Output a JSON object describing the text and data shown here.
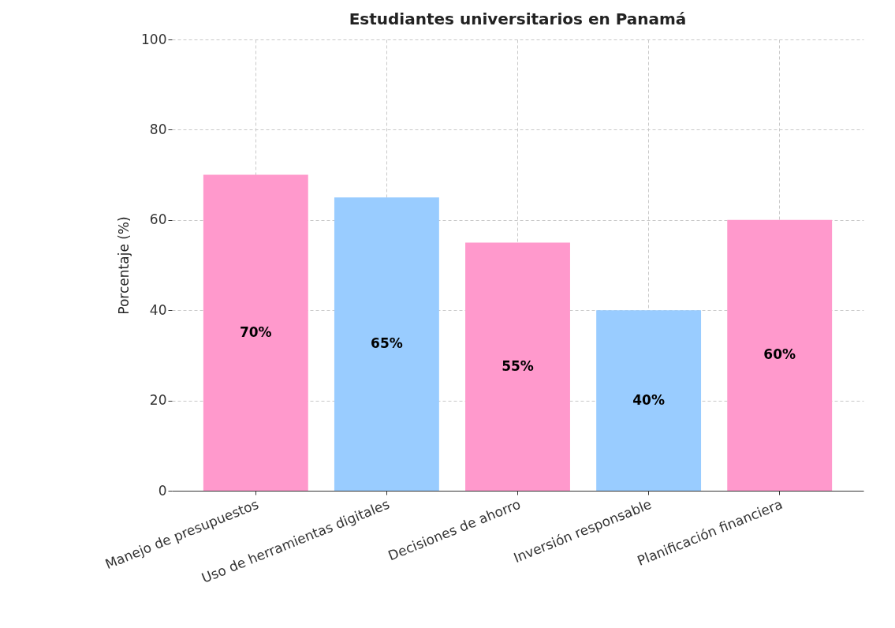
{
  "chart_data": {
    "type": "bar",
    "title": "Estudiantes universitarios en Panamá",
    "ylabel": "Porcentaje (%)",
    "categories": [
      "Manejo de presupuestos",
      "Uso de herramientas digitales",
      "Decisiones de ahorro",
      "Inversión responsable",
      "Planificación financiera"
    ],
    "values": [
      70,
      65,
      55,
      40,
      60
    ],
    "colors": [
      "#ff99cc",
      "#99ccff",
      "#ff99cc",
      "#99ccff",
      "#ff99cc"
    ],
    "value_labels": [
      "70%",
      "65%",
      "55%",
      "40%",
      "60%"
    ],
    "ylim": [
      0,
      100
    ],
    "yticks": [
      0,
      20,
      40,
      60,
      80,
      100
    ],
    "grid": true
  }
}
